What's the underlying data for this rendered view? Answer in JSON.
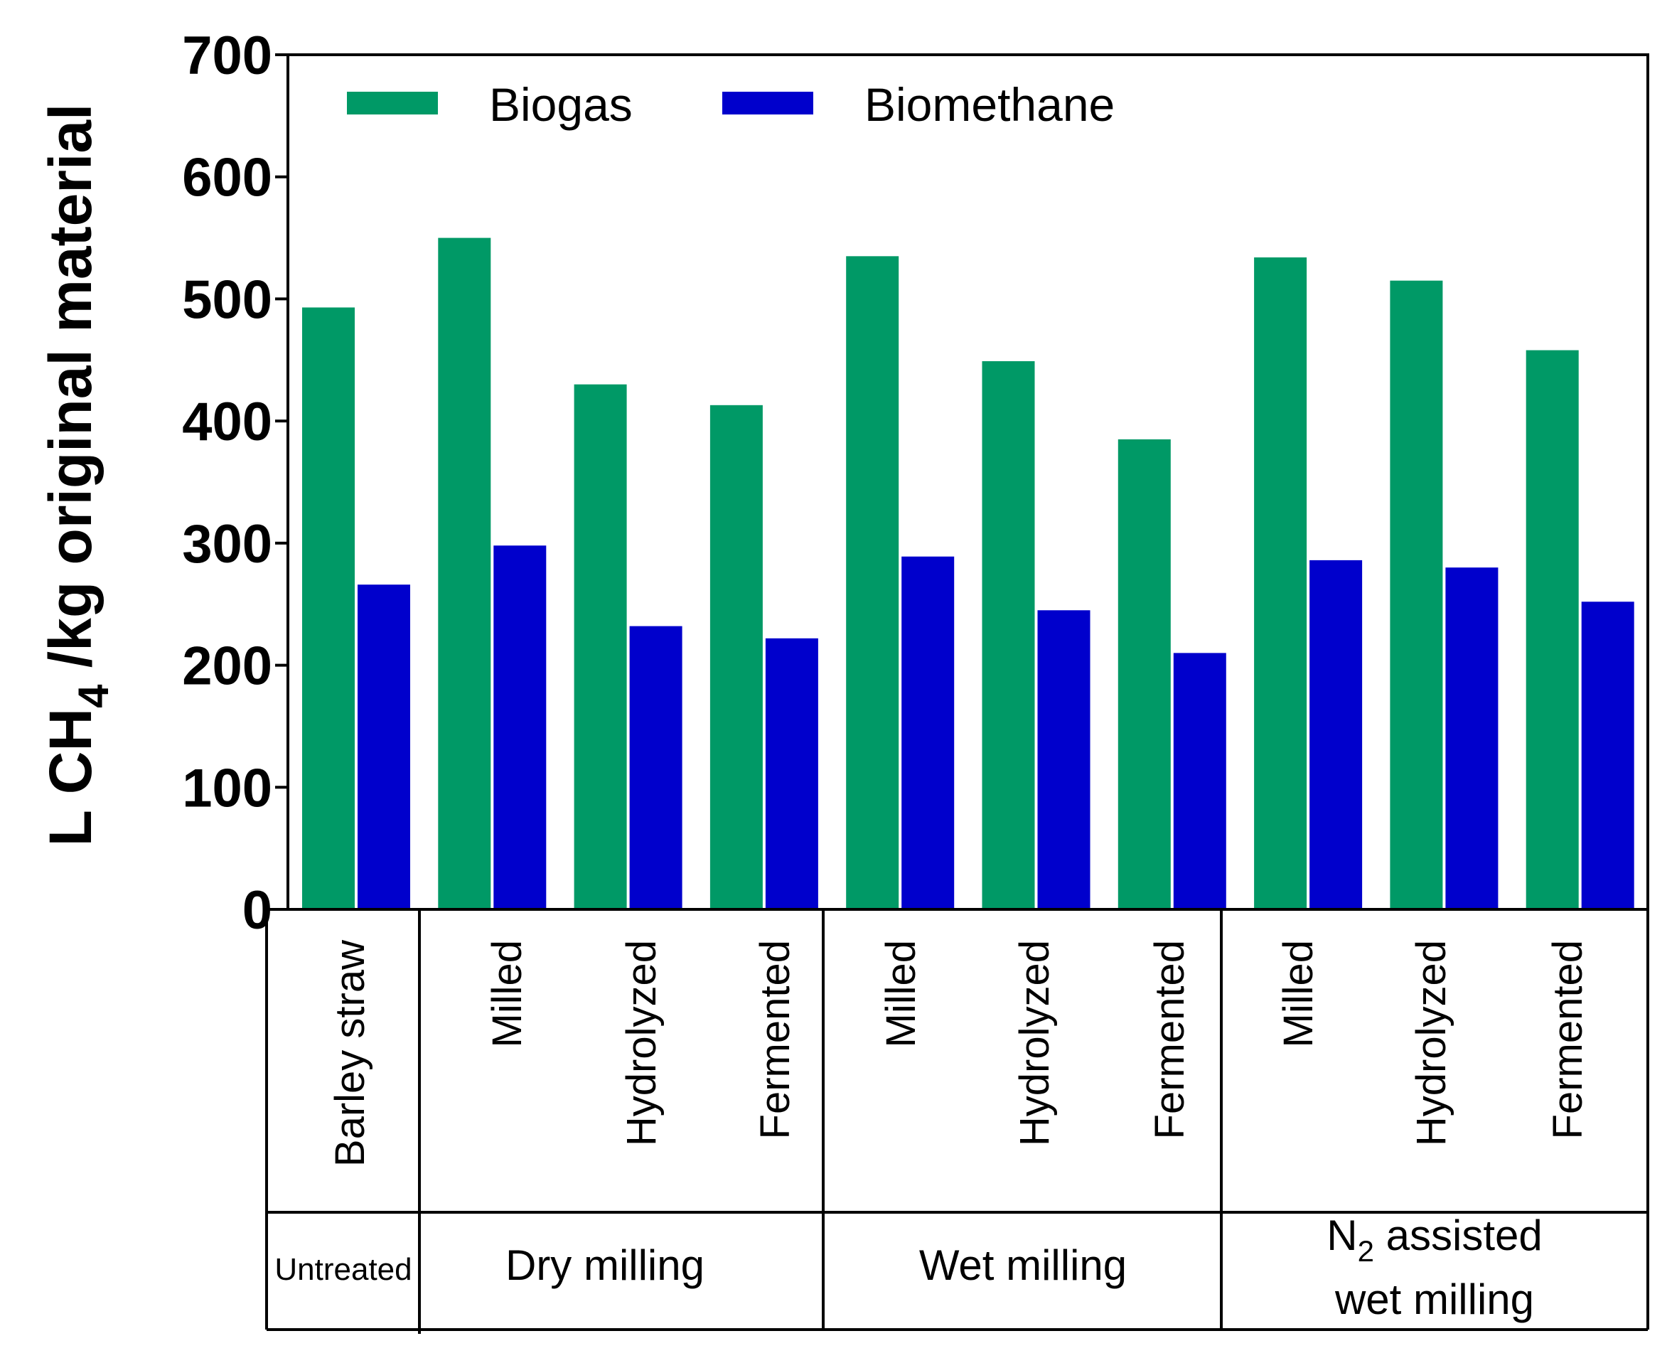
{
  "chart_data": {
    "type": "bar",
    "ylabel_parts": [
      "L CH",
      "4",
      " /kg original material"
    ],
    "ylim": [
      0,
      700
    ],
    "yticks": [
      "0",
      "100",
      "200",
      "300",
      "400",
      "500",
      "600",
      "700"
    ],
    "legend_position": "top-left",
    "categories": [
      "Barley straw",
      "Milled",
      "Hydrolyzed",
      "Fermented",
      "Milled",
      "Hydrolyzed",
      "Fermented",
      "Milled",
      "Hydrolyzed",
      "Fermented"
    ],
    "groups": [
      {
        "label_parts": [
          "Untreated"
        ],
        "span": 1
      },
      {
        "label_parts": [
          "Dry milling"
        ],
        "span": 3
      },
      {
        "label_parts": [
          "Wet milling"
        ],
        "span": 3
      },
      {
        "label_parts": [
          "N",
          "2",
          " assisted",
          "wet milling"
        ],
        "span": 3
      }
    ],
    "series": [
      {
        "name": "Biogas",
        "color": "#009966",
        "values": [
          493,
          550,
          430,
          413,
          535,
          449,
          385,
          534,
          515,
          458
        ]
      },
      {
        "name": "Biomethane",
        "color": "#0000CC",
        "values": [
          266,
          298,
          232,
          222,
          289,
          245,
          210,
          286,
          280,
          252
        ]
      }
    ]
  }
}
